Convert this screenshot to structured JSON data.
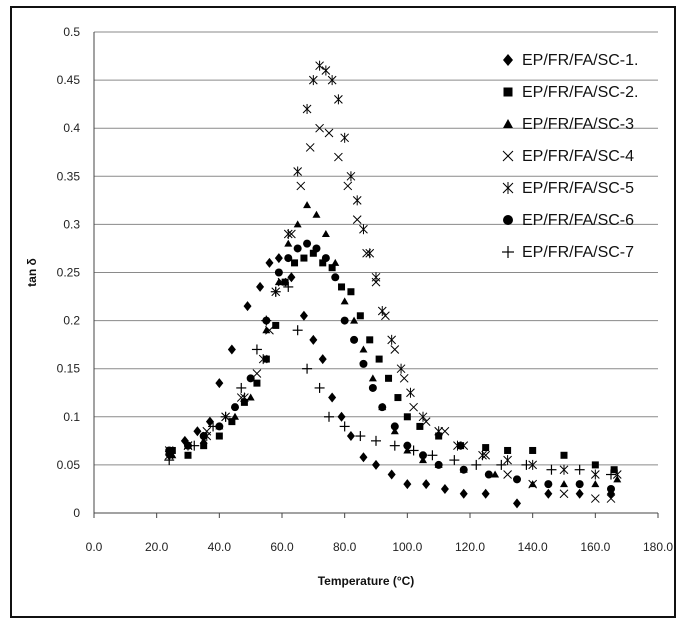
{
  "chart_data": {
    "type": "scatter",
    "xlabel": "Temperature (°C)",
    "ylabel": "tan δ",
    "xlim": [
      0,
      180
    ],
    "ylim": [
      0,
      0.5
    ],
    "x_ticks": [
      "0.0",
      "20.0",
      "40.0",
      "60.0",
      "80.0",
      "100.0",
      "120.0",
      "140.0",
      "160.0",
      "180.0"
    ],
    "y_ticks": [
      "0",
      "0.05",
      "0.1",
      "0.15",
      "0.2",
      "0.25",
      "0.3",
      "0.35",
      "0.4",
      "0.45",
      "0.5"
    ],
    "grid": "horizontal",
    "legend_position": "right",
    "series": [
      {
        "name": "EP/FR/FA/SC-1.",
        "marker": "diamond",
        "points": [
          [
            24,
            0.06
          ],
          [
            29,
            0.075
          ],
          [
            33,
            0.085
          ],
          [
            37,
            0.095
          ],
          [
            40,
            0.135
          ],
          [
            44,
            0.17
          ],
          [
            49,
            0.215
          ],
          [
            53,
            0.235
          ],
          [
            56,
            0.26
          ],
          [
            59,
            0.265
          ],
          [
            63,
            0.245
          ],
          [
            67,
            0.205
          ],
          [
            70,
            0.18
          ],
          [
            73,
            0.16
          ],
          [
            76,
            0.12
          ],
          [
            79,
            0.1
          ],
          [
            82,
            0.08
          ],
          [
            86,
            0.058
          ],
          [
            90,
            0.05
          ],
          [
            95,
            0.04
          ],
          [
            100,
            0.03
          ],
          [
            106,
            0.03
          ],
          [
            112,
            0.025
          ],
          [
            118,
            0.02
          ],
          [
            125,
            0.02
          ],
          [
            135,
            0.01
          ],
          [
            145,
            0.02
          ],
          [
            155,
            0.02
          ],
          [
            165,
            0.02
          ]
        ]
      },
      {
        "name": "EP/FR/FA/SC-2.",
        "marker": "square",
        "points": [
          [
            25,
            0.065
          ],
          [
            30,
            0.06
          ],
          [
            35,
            0.07
          ],
          [
            40,
            0.08
          ],
          [
            44,
            0.095
          ],
          [
            48,
            0.115
          ],
          [
            52,
            0.135
          ],
          [
            55,
            0.16
          ],
          [
            58,
            0.195
          ],
          [
            61,
            0.24
          ],
          [
            64,
            0.26
          ],
          [
            67,
            0.265
          ],
          [
            70,
            0.27
          ],
          [
            73,
            0.26
          ],
          [
            76,
            0.255
          ],
          [
            79,
            0.235
          ],
          [
            82,
            0.23
          ],
          [
            85,
            0.205
          ],
          [
            88,
            0.18
          ],
          [
            91,
            0.16
          ],
          [
            94,
            0.14
          ],
          [
            97,
            0.12
          ],
          [
            100,
            0.1
          ],
          [
            104,
            0.09
          ],
          [
            110,
            0.08
          ],
          [
            117,
            0.07
          ],
          [
            125,
            0.068
          ],
          [
            132,
            0.065
          ],
          [
            140,
            0.065
          ],
          [
            150,
            0.06
          ],
          [
            160,
            0.05
          ],
          [
            166,
            0.045
          ]
        ]
      },
      {
        "name": "EP/FR/FA/SC-3",
        "marker": "triangle",
        "points": [
          [
            25,
            0.06
          ],
          [
            30,
            0.07
          ],
          [
            35,
            0.075
          ],
          [
            40,
            0.09
          ],
          [
            45,
            0.1
          ],
          [
            50,
            0.12
          ],
          [
            55,
            0.19
          ],
          [
            59,
            0.24
          ],
          [
            62,
            0.28
          ],
          [
            65,
            0.3
          ],
          [
            68,
            0.32
          ],
          [
            71,
            0.31
          ],
          [
            74,
            0.29
          ],
          [
            77,
            0.26
          ],
          [
            80,
            0.22
          ],
          [
            83,
            0.2
          ],
          [
            86,
            0.17
          ],
          [
            89,
            0.14
          ],
          [
            92,
            0.11
          ],
          [
            96,
            0.085
          ],
          [
            100,
            0.065
          ],
          [
            105,
            0.055
          ],
          [
            110,
            0.05
          ],
          [
            118,
            0.045
          ],
          [
            128,
            0.04
          ],
          [
            140,
            0.03
          ],
          [
            150,
            0.03
          ],
          [
            160,
            0.03
          ],
          [
            167,
            0.035
          ]
        ]
      },
      {
        "name": "EP/FR/FA/SC-4",
        "marker": "x",
        "points": [
          [
            24,
            0.065
          ],
          [
            30,
            0.07
          ],
          [
            36,
            0.085
          ],
          [
            42,
            0.1
          ],
          [
            47,
            0.12
          ],
          [
            52,
            0.145
          ],
          [
            56,
            0.19
          ],
          [
            60,
            0.24
          ],
          [
            63,
            0.29
          ],
          [
            66,
            0.34
          ],
          [
            69,
            0.38
          ],
          [
            72,
            0.4
          ],
          [
            75,
            0.395
          ],
          [
            78,
            0.37
          ],
          [
            81,
            0.34
          ],
          [
            84,
            0.305
          ],
          [
            87,
            0.27
          ],
          [
            90,
            0.24
          ],
          [
            93,
            0.205
          ],
          [
            96,
            0.17
          ],
          [
            99,
            0.14
          ],
          [
            102,
            0.11
          ],
          [
            106,
            0.095
          ],
          [
            112,
            0.085
          ],
          [
            118,
            0.07
          ],
          [
            125,
            0.06
          ],
          [
            132,
            0.04
          ],
          [
            140,
            0.03
          ],
          [
            150,
            0.02
          ],
          [
            160,
            0.015
          ],
          [
            165,
            0.015
          ]
        ]
      },
      {
        "name": "EP/FR/FA/SC-5",
        "marker": "asterisk",
        "points": [
          [
            24,
            0.06
          ],
          [
            30,
            0.07
          ],
          [
            36,
            0.08
          ],
          [
            42,
            0.1
          ],
          [
            48,
            0.12
          ],
          [
            54,
            0.16
          ],
          [
            58,
            0.23
          ],
          [
            62,
            0.29
          ],
          [
            65,
            0.355
          ],
          [
            68,
            0.42
          ],
          [
            70,
            0.45
          ],
          [
            72,
            0.465
          ],
          [
            74,
            0.46
          ],
          [
            76,
            0.45
          ],
          [
            78,
            0.43
          ],
          [
            80,
            0.39
          ],
          [
            82,
            0.35
          ],
          [
            84,
            0.325
          ],
          [
            86,
            0.295
          ],
          [
            88,
            0.27
          ],
          [
            90,
            0.245
          ],
          [
            92,
            0.21
          ],
          [
            95,
            0.18
          ],
          [
            98,
            0.15
          ],
          [
            101,
            0.125
          ],
          [
            105,
            0.1
          ],
          [
            110,
            0.085
          ],
          [
            116,
            0.07
          ],
          [
            124,
            0.06
          ],
          [
            132,
            0.055
          ],
          [
            140,
            0.05
          ],
          [
            150,
            0.045
          ],
          [
            160,
            0.04
          ],
          [
            167,
            0.04
          ]
        ]
      },
      {
        "name": "EP/FR/FA/SC-6",
        "marker": "circle",
        "points": [
          [
            24,
            0.065
          ],
          [
            30,
            0.07
          ],
          [
            35,
            0.08
          ],
          [
            40,
            0.09
          ],
          [
            45,
            0.11
          ],
          [
            50,
            0.14
          ],
          [
            55,
            0.2
          ],
          [
            59,
            0.25
          ],
          [
            62,
            0.265
          ],
          [
            65,
            0.275
          ],
          [
            68,
            0.28
          ],
          [
            71,
            0.275
          ],
          [
            74,
            0.265
          ],
          [
            77,
            0.245
          ],
          [
            80,
            0.2
          ],
          [
            83,
            0.18
          ],
          [
            86,
            0.155
          ],
          [
            89,
            0.13
          ],
          [
            92,
            0.11
          ],
          [
            96,
            0.09
          ],
          [
            100,
            0.07
          ],
          [
            105,
            0.06
          ],
          [
            110,
            0.05
          ],
          [
            118,
            0.045
          ],
          [
            126,
            0.04
          ],
          [
            135,
            0.035
          ],
          [
            145,
            0.03
          ],
          [
            155,
            0.03
          ],
          [
            165,
            0.025
          ]
        ]
      },
      {
        "name": "EP/FR/FA/SC-7",
        "marker": "plus",
        "points": [
          [
            24,
            0.055
          ],
          [
            32,
            0.07
          ],
          [
            38,
            0.09
          ],
          [
            42,
            0.1
          ],
          [
            47,
            0.13
          ],
          [
            52,
            0.17
          ],
          [
            55,
            0.2
          ],
          [
            58,
            0.23
          ],
          [
            62,
            0.235
          ],
          [
            65,
            0.19
          ],
          [
            68,
            0.15
          ],
          [
            72,
            0.13
          ],
          [
            75,
            0.1
          ],
          [
            80,
            0.09
          ],
          [
            85,
            0.08
          ],
          [
            90,
            0.075
          ],
          [
            96,
            0.07
          ],
          [
            102,
            0.065
          ],
          [
            108,
            0.06
          ],
          [
            115,
            0.055
          ],
          [
            122,
            0.05
          ],
          [
            130,
            0.05
          ],
          [
            138,
            0.05
          ],
          [
            146,
            0.045
          ],
          [
            155,
            0.045
          ],
          [
            165,
            0.04
          ]
        ]
      }
    ]
  }
}
